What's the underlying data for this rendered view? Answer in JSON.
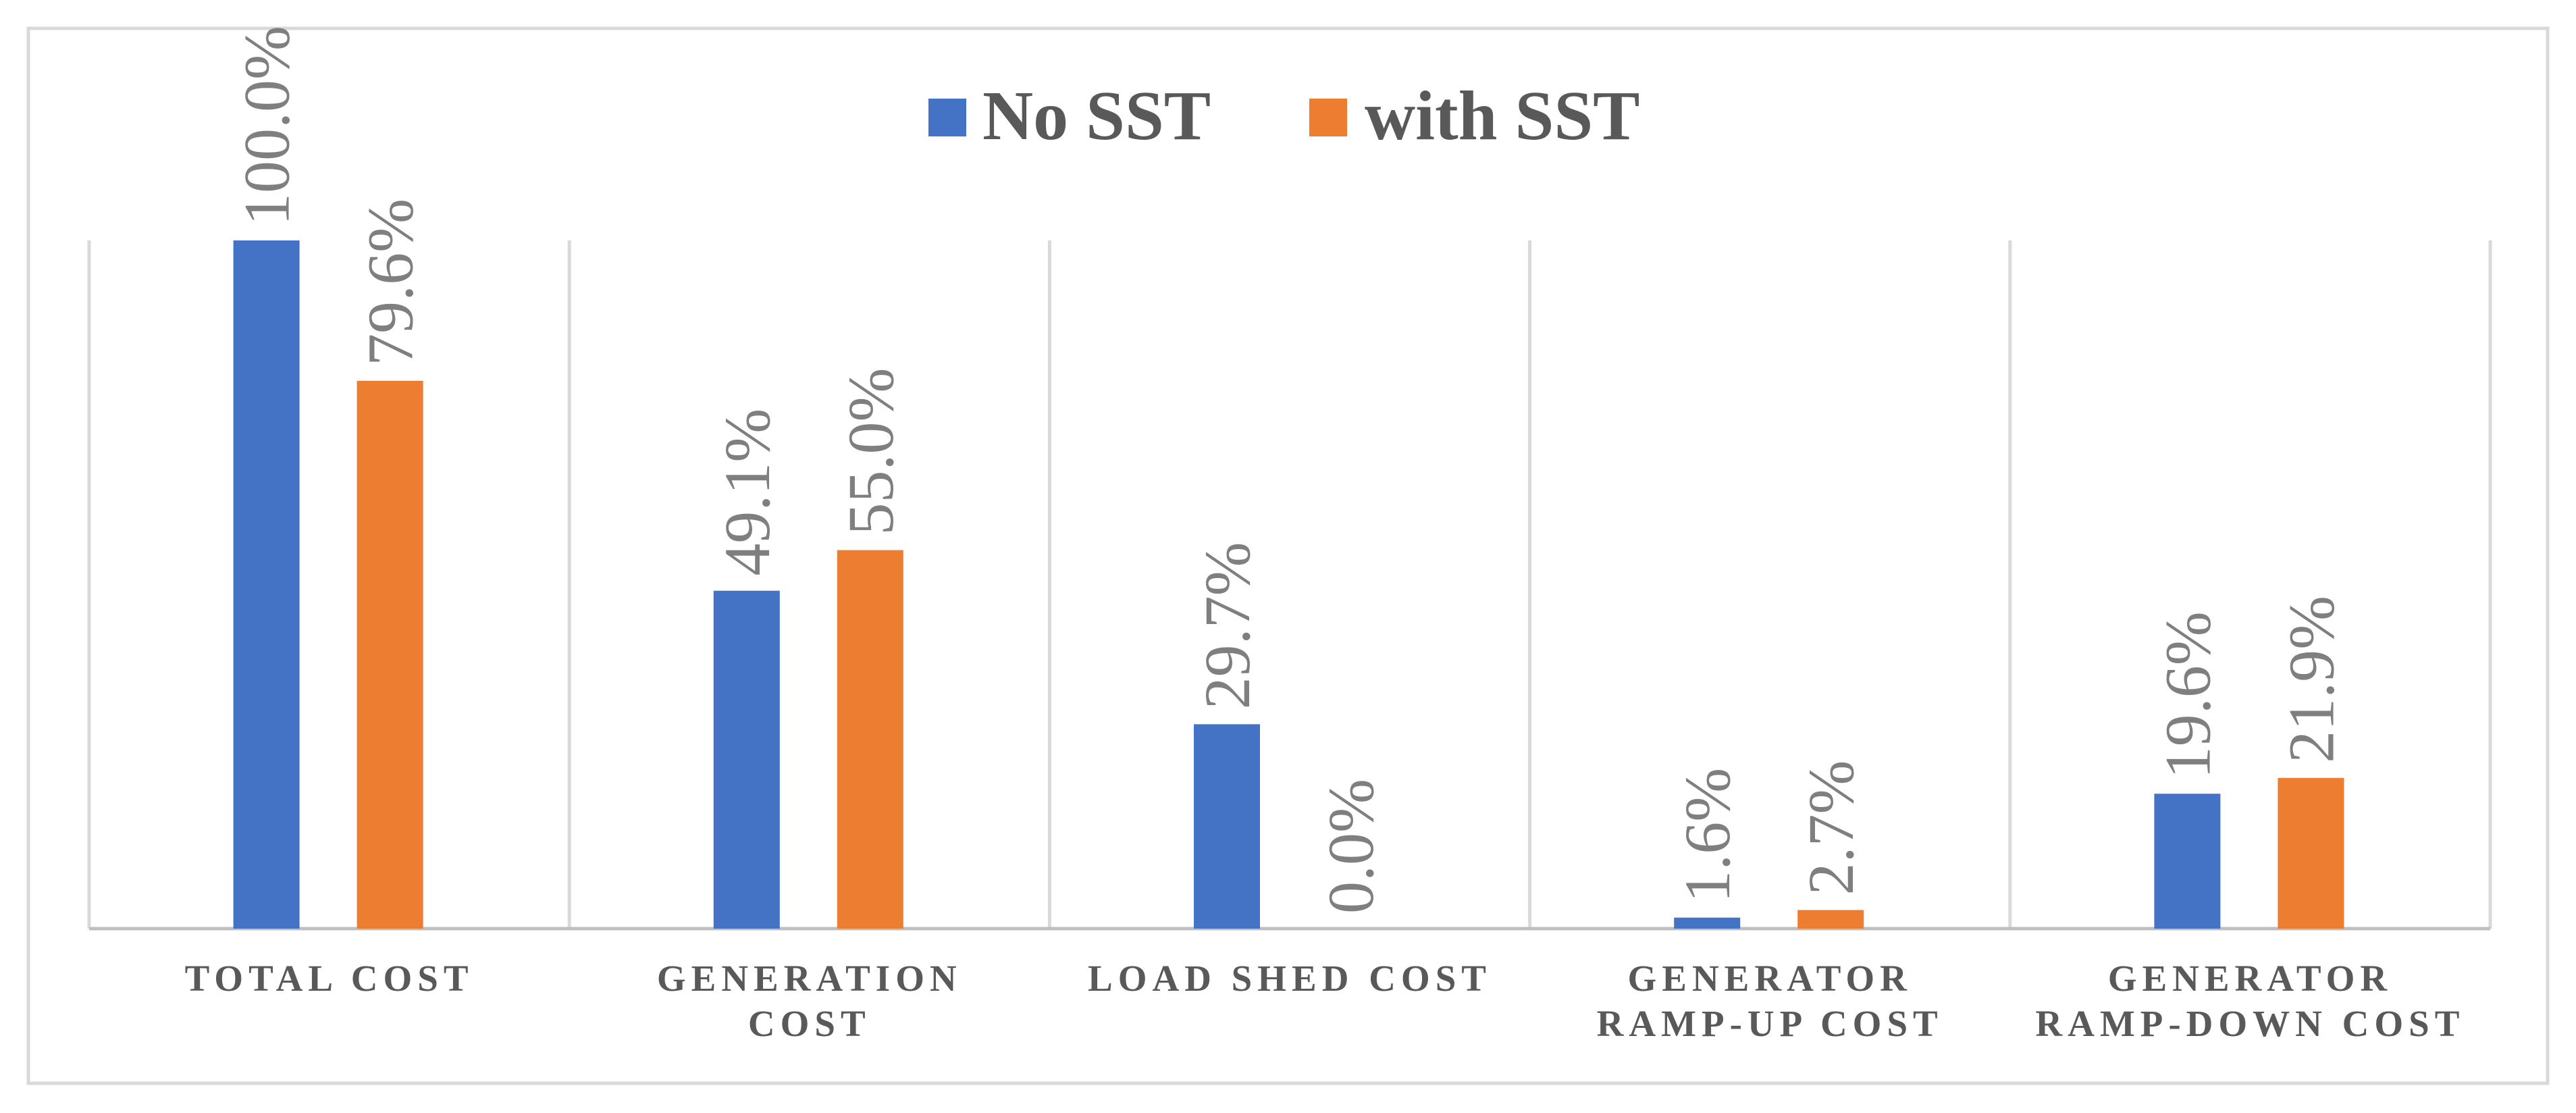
{
  "chart_data": {
    "type": "bar",
    "categories": [
      [
        "TOTAL COST"
      ],
      [
        "GENERATION",
        "COST"
      ],
      [
        "LOAD SHED COST"
      ],
      [
        "GENERATOR",
        "RAMP-UP COST"
      ],
      [
        "GENERATOR",
        "RAMP-DOWN COST"
      ]
    ],
    "series": [
      {
        "name": "No SST",
        "color": "#4472C4",
        "values": [
          100.0,
          49.1,
          29.7,
          1.6,
          19.6
        ],
        "labels": [
          "100.0%",
          "49.1%",
          "29.7%",
          "1.6%",
          "19.6%"
        ]
      },
      {
        "name": "with SST",
        "color": "#ED7D31",
        "values": [
          79.6,
          55.0,
          0.0,
          2.7,
          21.9
        ],
        "labels": [
          "79.6%",
          "55.0%",
          "0.0%",
          "2.7%",
          "21.9%"
        ]
      }
    ],
    "ylim": [
      0,
      100
    ],
    "legend_position": "top-center",
    "grid": "vertical category separators",
    "title": "",
    "xlabel": "",
    "ylabel": ""
  },
  "colors": {
    "label_text": "#7F7F7F",
    "category_text": "#595959",
    "legend_text": "#595959",
    "gridline": "#D9D9D9",
    "frame": "#D9D9D9",
    "axis": "#BFBFBF"
  }
}
